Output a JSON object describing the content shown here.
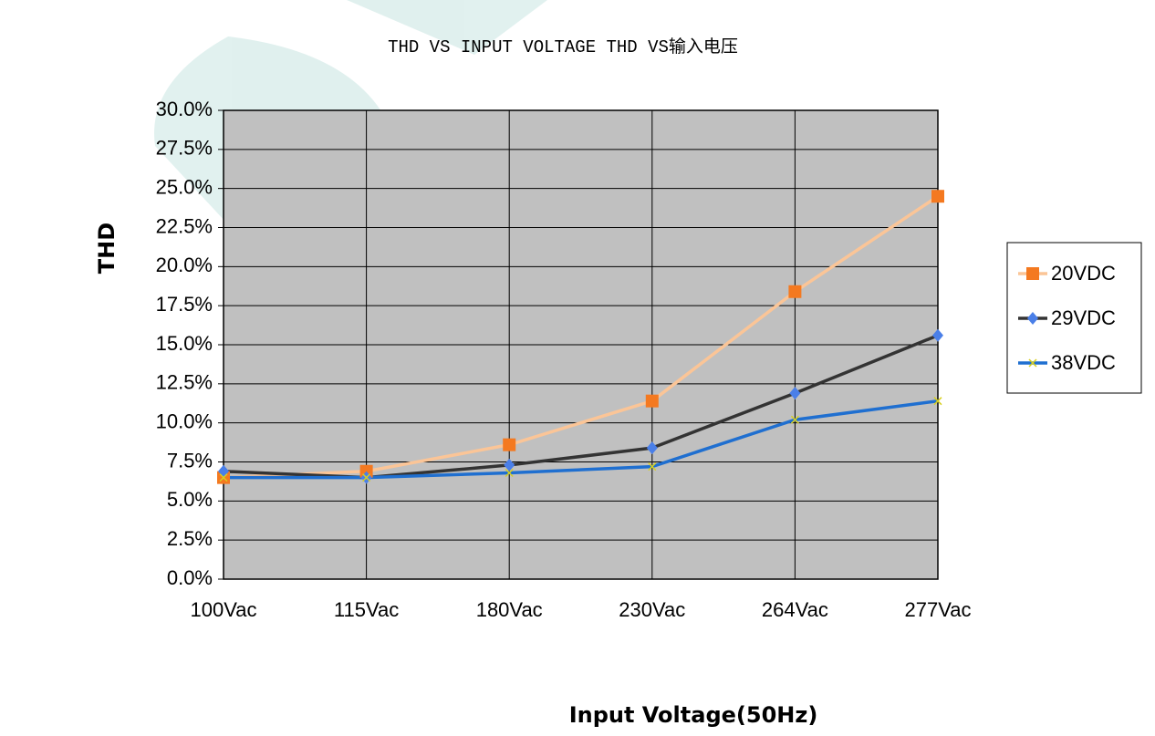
{
  "chart_data": {
    "type": "line",
    "title": "THD VS INPUT VOLTAGE   THD VS输入电压",
    "x_label": "Input Voltage(50Hz)",
    "y_label": "THD",
    "categories": [
      "100Vac",
      "115Vac",
      "180Vac",
      "230Vac",
      "264Vac",
      "277Vac"
    ],
    "series": [
      {
        "name": "20VDC",
        "color": "#fbc597",
        "marker_color": "#f47920",
        "marker": "square",
        "values": [
          6.5,
          6.9,
          8.6,
          11.4,
          18.4,
          24.5
        ]
      },
      {
        "name": "29VDC",
        "color": "#333333",
        "marker_color": "#4a7fe8",
        "marker": "diamond",
        "values": [
          6.9,
          6.5,
          7.3,
          8.4,
          11.9,
          15.6
        ]
      },
      {
        "name": "38VDC",
        "color": "#1f6fd0",
        "marker_color": "#d8d020",
        "marker": "x",
        "values": [
          6.5,
          6.5,
          6.8,
          7.2,
          10.2,
          11.4
        ]
      }
    ],
    "ylim": [
      0,
      30
    ],
    "yticks": [
      {
        "value": 0,
        "label": "0.0%"
      },
      {
        "value": 2.5,
        "label": "2.5%"
      },
      {
        "value": 5,
        "label": "5.0%"
      },
      {
        "value": 7.5,
        "label": "7.5%"
      },
      {
        "value": 10,
        "label": "10.0%"
      },
      {
        "value": 12.5,
        "label": "12.5%"
      },
      {
        "value": 15,
        "label": "15.0%"
      },
      {
        "value": 17.5,
        "label": "17.5%"
      },
      {
        "value": 20,
        "label": "20.0%"
      },
      {
        "value": 22.5,
        "label": "22.5%"
      },
      {
        "value": 25,
        "label": "25.0%"
      },
      {
        "value": 27.5,
        "label": "27.5%"
      },
      {
        "value": 30,
        "label": "30.0%"
      }
    ],
    "grid": true,
    "plot_background": "#c0c0c0",
    "legend": "right"
  }
}
